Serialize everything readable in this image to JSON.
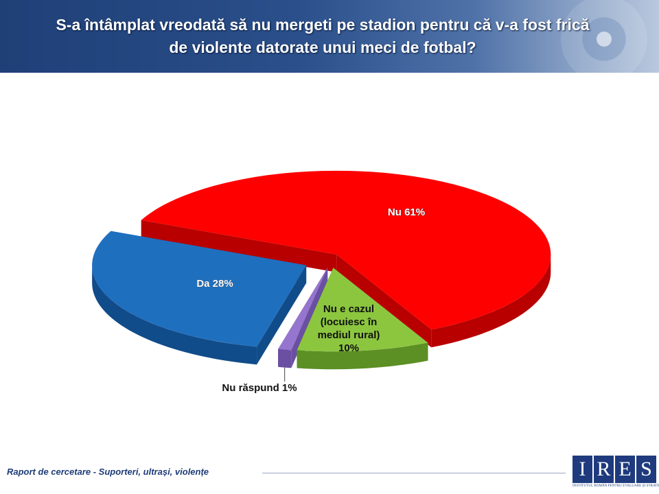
{
  "header": {
    "title_line1": "S-a întâmplat vreodată să nu mergeti pe stadion pentru că v-a fost frică",
    "title_line2": "de violente datorate unui meci de fotbal?"
  },
  "chart_data": {
    "type": "pie",
    "slices": [
      {
        "label": "Nu",
        "value": 61,
        "color": "#ff0000",
        "side_color": "#b80000",
        "label_lines": [
          "Nu 61%"
        ]
      },
      {
        "label": "Nu e cazul (locuiesc în mediul rural)",
        "value": 10,
        "color": "#8cc63f",
        "side_color": "#5c8f24",
        "label_lines": [
          "Nu e cazul",
          "(locuiesc în",
          "mediul rural)",
          "10%"
        ]
      },
      {
        "label": "Nu răspund",
        "value": 1,
        "color": "#9575cd",
        "side_color": "#6a4fa2",
        "label_lines": [
          "Nu răspund 1%"
        ]
      },
      {
        "label": "Da",
        "value": 28,
        "color": "#1f6fbf",
        "side_color": "#114c8a",
        "label_lines": [
          "Da 28%"
        ]
      }
    ]
  },
  "footer": {
    "report_text": "Raport de cercetare - Suporteri, ultrași, violențe"
  },
  "logo": {
    "letters": [
      "I",
      "R",
      "E",
      "S"
    ],
    "subtitle": "INSTITUTUL ROMÂN PENTRU EVALUARE ȘI STRATEGIE"
  }
}
